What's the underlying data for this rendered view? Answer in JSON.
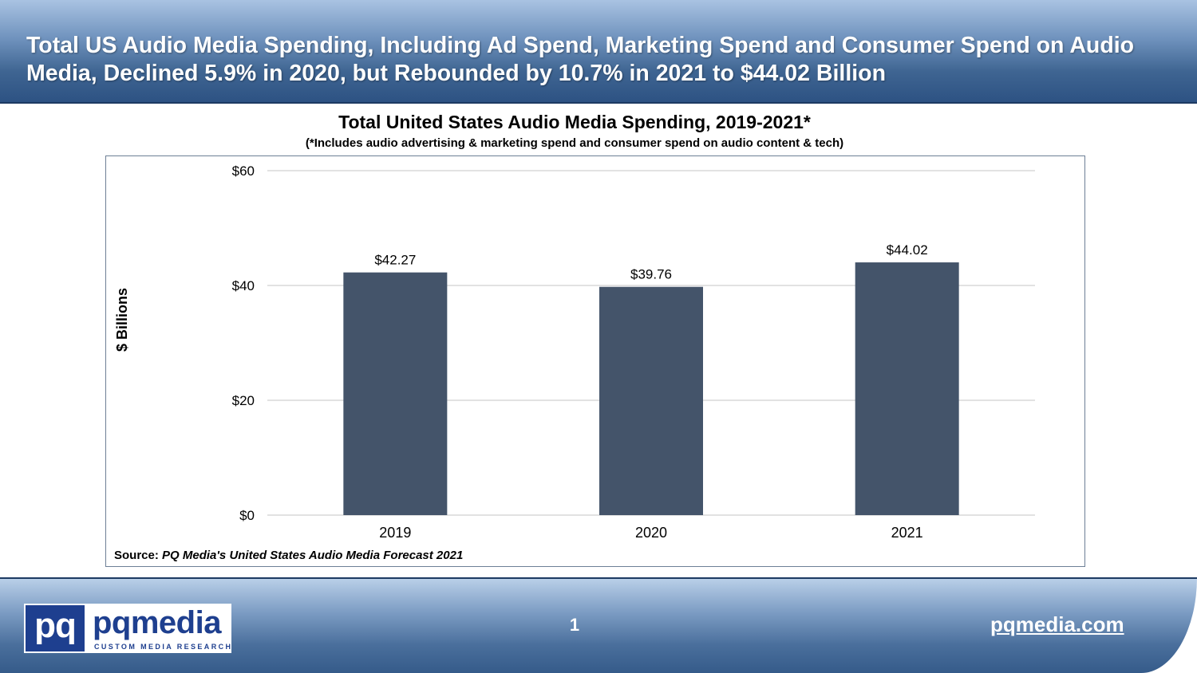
{
  "header": {
    "title": "Total US Audio Media Spending, Including Ad Spend, Marketing Spend and Consumer Spend on Audio Media, Declined 5.9% in 2020, but Rebounded by 10.7% in 2021 to $44.02 Billion"
  },
  "chart_data": {
    "type": "bar",
    "title": "Total United States Audio Media Spending, 2019-2021*",
    "subtitle": "(*Includes audio advertising & marketing spend and consumer spend on audio content & tech)",
    "categories": [
      "2019",
      "2020",
      "2021"
    ],
    "values": [
      42.27,
      39.76,
      44.02
    ],
    "value_labels": [
      "$42.27",
      "$39.76",
      "$44.02"
    ],
    "xlabel": "",
    "ylabel": "$ Billions",
    "ylim": [
      0,
      60
    ],
    "yticks": [
      0,
      20,
      40,
      60
    ],
    "ytick_labels": [
      "$0",
      "$20",
      "$40",
      "$60"
    ],
    "grid": true,
    "legend": "none",
    "bar_color": "#44546a"
  },
  "source": {
    "prefix": "Source: ",
    "text": "PQ Media's United States Audio Media Forecast 2021"
  },
  "footer": {
    "logo_mark": "pq",
    "logo_word": "pqmedia",
    "logo_tagline": "CUSTOM MEDIA RESEARCH",
    "page_number": "1",
    "site_link": "pqmedia.com"
  },
  "colors": {
    "header_blue": "#3f6592",
    "logo_blue": "#1e3f8f",
    "bar": "#44546a",
    "gridline": "#d9d9d9"
  }
}
